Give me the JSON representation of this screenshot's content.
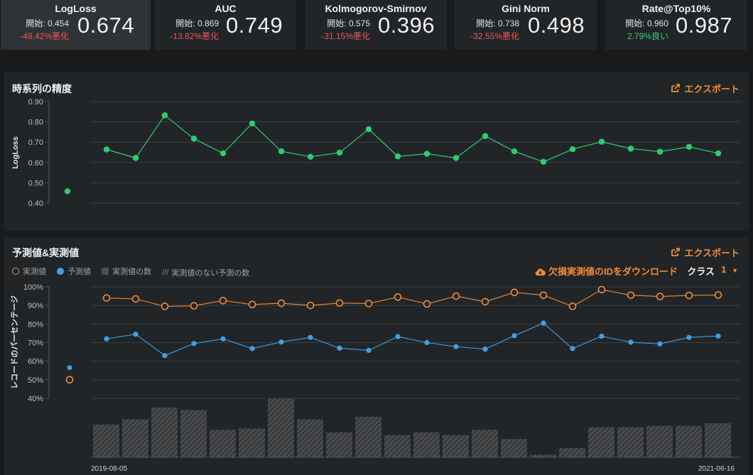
{
  "metrics": [
    {
      "name": "LogLoss",
      "start_label": "開始: 0.454",
      "change": "-48.42%悪化",
      "change_kind": "bad",
      "value": "0.674",
      "active": true
    },
    {
      "name": "AUC",
      "start_label": "開始: 0.869",
      "change": "-13.82%悪化",
      "change_kind": "bad",
      "value": "0.749",
      "active": false
    },
    {
      "name": "Kolmogorov-Smirnov",
      "start_label": "開始: 0.575",
      "change": "-31.15%悪化",
      "change_kind": "bad",
      "value": "0.396",
      "active": false
    },
    {
      "name": "Gini Norm",
      "start_label": "開始: 0.738",
      "change": "-32.55%悪化",
      "change_kind": "bad",
      "value": "0.498",
      "active": false
    },
    {
      "name": "Rate@Top10%",
      "start_label": "開始: 0.960",
      "change": "2.79%良い",
      "change_kind": "good",
      "value": "0.987",
      "active": false
    }
  ],
  "accuracy_panel": {
    "title": "時系列の精度",
    "export_label": "エクスポート"
  },
  "pred_panel": {
    "title": "予測値&実測値",
    "export_label": "エクスポート",
    "legend": {
      "actual": "実測値",
      "predicted": "予測値",
      "actual_count": "実測値の数",
      "no_actual_count": "実測値のない予測の数"
    },
    "download_label": "欠損実測値のIDをダウンロード",
    "class_label": "クラス",
    "class_value": "1"
  },
  "colors": {
    "accent": "#f08c35",
    "green": "#2ecc71",
    "blue": "#3ea1e6",
    "orange": "#f08c35",
    "bad": "#e8575b",
    "good": "#3ecf73"
  },
  "chart_data": [
    {
      "type": "line",
      "title": "時系列の精度",
      "ylabel": "LogLoss",
      "xlabel": "",
      "ylim": [
        0.4,
        0.9
      ],
      "yticks": [
        "0.90",
        "0.80",
        "0.70",
        "0.60",
        "0.50",
        "0.40"
      ],
      "ytick_values": [
        0.9,
        0.8,
        0.7,
        0.6,
        0.5,
        0.4
      ],
      "baseline_value": 0.458,
      "values": [
        0.664,
        0.622,
        0.832,
        0.717,
        0.645,
        0.792,
        0.655,
        0.628,
        0.648,
        0.764,
        0.63,
        0.643,
        0.622,
        0.73,
        0.655,
        0.603,
        0.665,
        0.702,
        0.668,
        0.653,
        0.677,
        0.645
      ]
    },
    {
      "type": "line",
      "title": "予測値&実測値",
      "ylabel": "レコードのパーセンテージ",
      "ylim": [
        40,
        100
      ],
      "yticks": [
        "100%",
        "90%",
        "80%",
        "70%",
        "60%",
        "50%",
        "40%"
      ],
      "ytick_values": [
        100,
        90,
        80,
        70,
        60,
        50,
        40
      ],
      "x_start_label": "2019-08-05",
      "x_end_label": "2021-06-16",
      "baseline": {
        "actual": 50.0,
        "predicted": 56.5
      },
      "series": [
        {
          "name": "実測値",
          "values": [
            94.0,
            93.5,
            89.5,
            89.8,
            92.6,
            90.5,
            91.2,
            90.0,
            91.3,
            91.0,
            94.5,
            90.8,
            95.0,
            92.0,
            97.0,
            95.5,
            89.5,
            98.5,
            95.5,
            94.8,
            95.4,
            95.6
          ]
        },
        {
          "name": "予測値",
          "values": [
            72.0,
            74.5,
            63.0,
            69.5,
            72.0,
            66.8,
            70.3,
            72.8,
            67.0,
            65.8,
            73.2,
            70.0,
            67.8,
            66.5,
            73.7,
            80.5,
            66.8,
            73.4,
            70.2,
            69.3,
            72.8,
            73.5
          ]
        }
      ],
      "counts": {
        "name": "実測値の数",
        "values": [
          25,
          29,
          38,
          36,
          21,
          22,
          45,
          29,
          19,
          31,
          17,
          19,
          17,
          21,
          14,
          2,
          7,
          23,
          23,
          24,
          24,
          26
        ]
      },
      "counts_max": 45
    }
  ]
}
